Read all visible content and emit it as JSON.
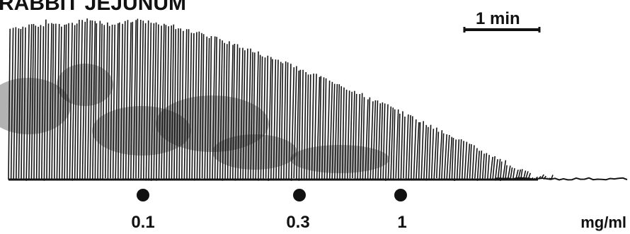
{
  "title": "RABBIT JEJUNUM",
  "scale_bar": {
    "label": "1 min"
  },
  "dose_markers": [
    {
      "label": "0.1"
    },
    {
      "label": "0.3"
    },
    {
      "label": "1"
    }
  ],
  "unit": "mg/ml",
  "colors": {
    "ink": "#111111",
    "background": "#ffffff"
  }
}
